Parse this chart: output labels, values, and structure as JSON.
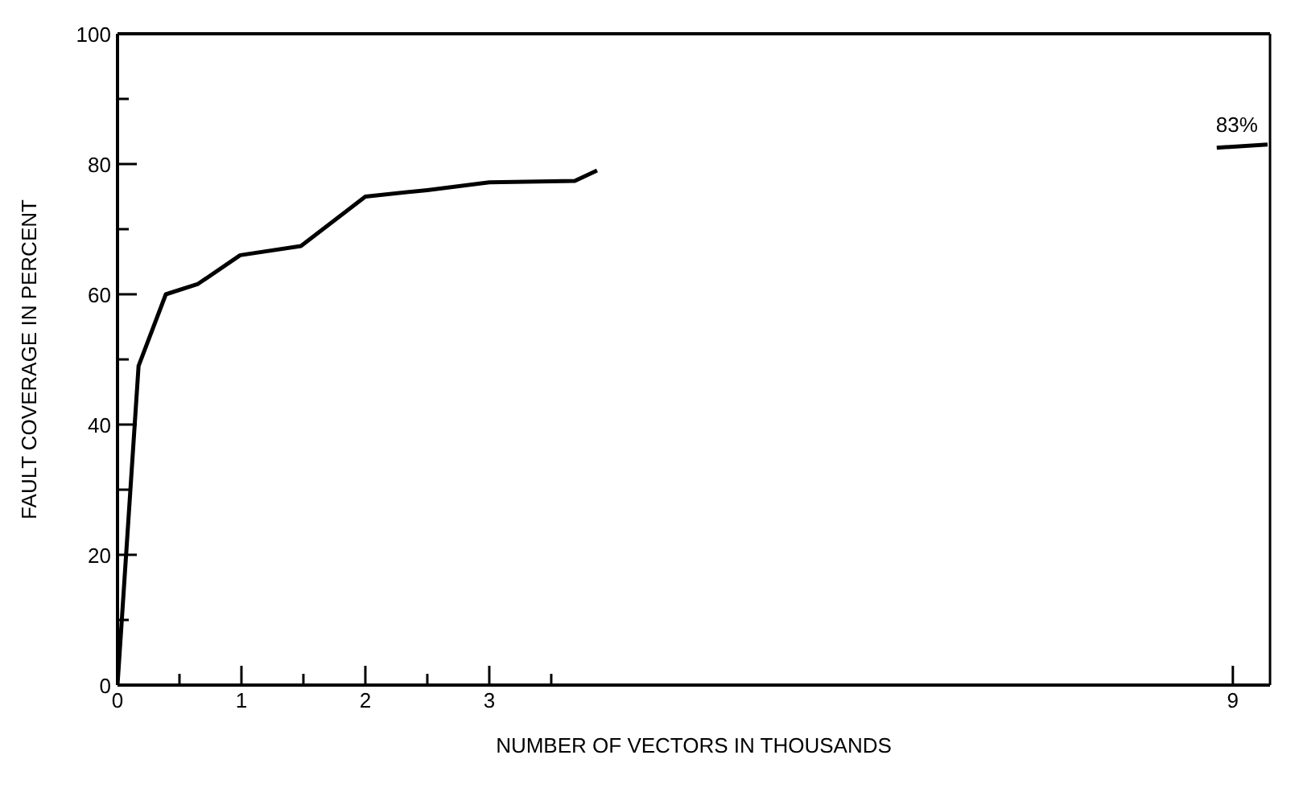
{
  "chart_data": {
    "type": "line",
    "xlabel": "NUMBER OF VECTORS IN THOUSANDS",
    "ylabel": "FAULT COVERAGE IN PERCENT",
    "series": [
      {
        "color": "#000000",
        "x": [
          0,
          0.17,
          0.39,
          0.65,
          0.99,
          1.48,
          2.0,
          2.5,
          3.0,
          3.69,
          3.87
        ],
        "values": [
          0,
          49,
          60,
          61.6,
          66,
          67.4,
          75,
          76,
          77.2,
          77.4,
          79
        ]
      },
      {
        "color": "#000000",
        "x": [
          8.87,
          9.28
        ],
        "values": [
          82.5,
          83
        ]
      }
    ],
    "annotations": [
      {
        "text": "83%",
        "x": 9.28,
        "y": 83
      }
    ],
    "xlim": [
      0,
      9.3
    ],
    "xticks": [
      0,
      {
        "value": 0.5,
        "label": null
      },
      1,
      {
        "value": 1.5,
        "label": null
      },
      2,
      {
        "value": 2.5,
        "label": null
      },
      3,
      {
        "value": 3.5,
        "label": null
      },
      9
    ],
    "ylim": [
      0,
      100
    ],
    "yticks": [
      0,
      {
        "value": 10,
        "label": null
      },
      20,
      {
        "value": 30,
        "label": null
      },
      40,
      {
        "value": 50,
        "label": null
      },
      60,
      {
        "value": 70,
        "label": null
      },
      80,
      {
        "value": 90,
        "label": null
      },
      100
    ],
    "marker": "none",
    "line_style": "solid"
  }
}
